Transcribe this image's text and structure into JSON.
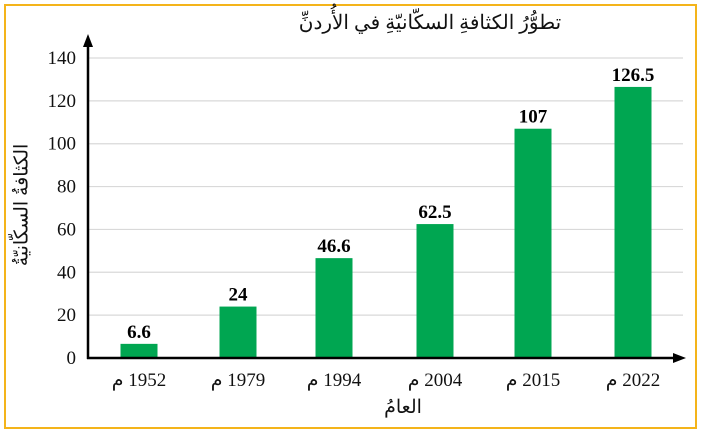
{
  "chart_data": {
    "type": "bar",
    "title": "تطوُّرُ الكثافةِ السكّانيّةِ في الأُردنِّ",
    "xlabel": "العامُ",
    "ylabel": "الكثافةُ السكّانيّةُ",
    "categories": [
      "1952 م",
      "1979 م",
      "1994 م",
      "2004 م",
      "2015 م",
      "2022 م"
    ],
    "values": [
      6.6,
      24,
      46.6,
      62.5,
      107,
      126.5
    ],
    "data_labels": [
      "6.6",
      "24",
      "46.6",
      "62.5",
      "107",
      "126.5"
    ],
    "yticks": [
      0,
      20,
      40,
      60,
      80,
      100,
      120,
      140
    ],
    "ylim": [
      0,
      140
    ],
    "grid": true,
    "legend": null,
    "colors": {
      "bar": "#00A651",
      "frame": "#F4B41A",
      "grid": "#D9D9D9",
      "axis": "#000000"
    }
  }
}
